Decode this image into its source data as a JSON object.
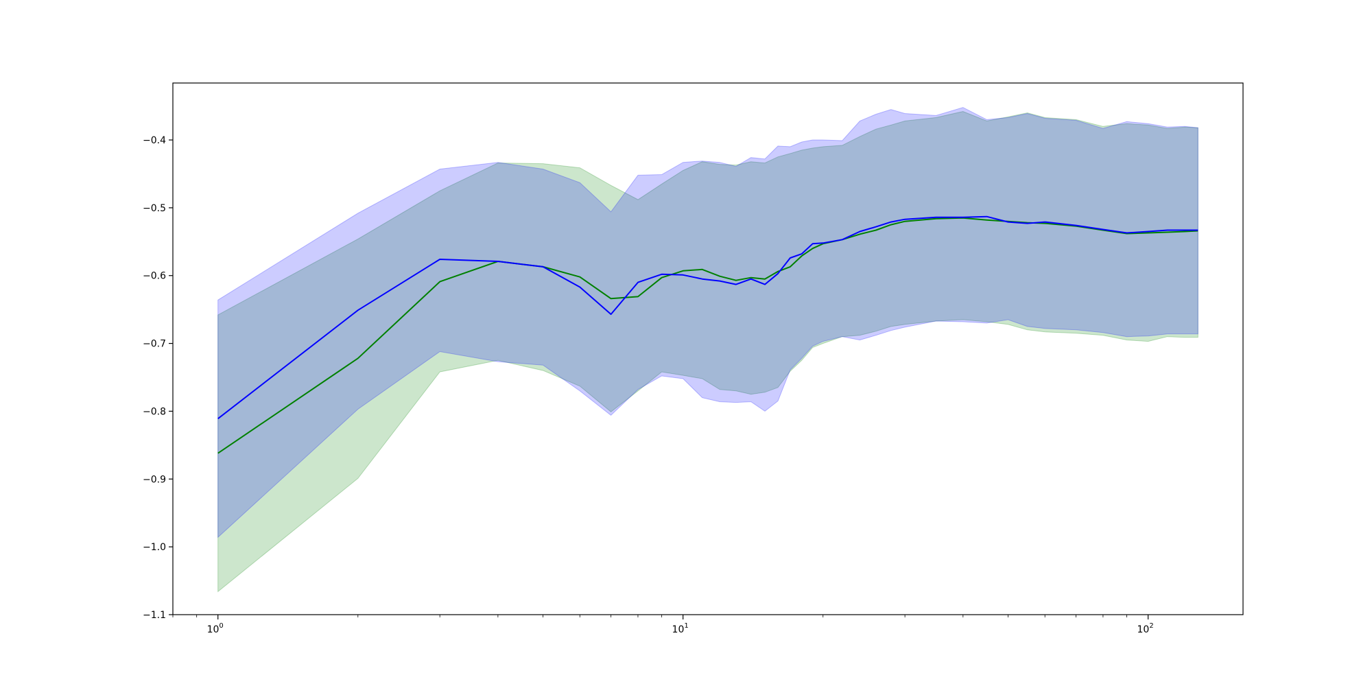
{
  "chart_data": {
    "type": "line",
    "xscale": "log",
    "xlim": [
      0.8,
      160
    ],
    "ylim": [
      -1.1,
      -0.316
    ],
    "grid": false,
    "legend": "none",
    "x_tick_labels": [
      {
        "base": "10",
        "exp": "0",
        "value": 1
      },
      {
        "base": "10",
        "exp": "1",
        "value": 10
      },
      {
        "base": "10",
        "exp": "2",
        "value": 100
      }
    ],
    "y_ticks": [
      -1.1,
      -1.0,
      -0.9,
      -0.8,
      -0.7,
      -0.6,
      -0.5,
      -0.4
    ],
    "y_tick_labels": [
      "−1.1",
      "−1.0",
      "−0.9",
      "−0.8",
      "−0.7",
      "−0.6",
      "−0.5",
      "−0.4"
    ],
    "series": [
      {
        "color": "#008000",
        "band_color": "#008000",
        "x": [
          1,
          2,
          3,
          4,
          5,
          6,
          7,
          8,
          9,
          10,
          11,
          12,
          13,
          14,
          15,
          16,
          17,
          18,
          19,
          20,
          22,
          24,
          26,
          28,
          30,
          35,
          40,
          45,
          50,
          55,
          60,
          70,
          80,
          90,
          100,
          110,
          120,
          128
        ],
        "mean": [
          -0.862,
          -0.722,
          -0.609,
          -0.579,
          -0.587,
          -0.602,
          -0.634,
          -0.631,
          -0.603,
          -0.593,
          -0.591,
          -0.601,
          -0.607,
          -0.603,
          -0.605,
          -0.594,
          -0.587,
          -0.571,
          -0.56,
          -0.553,
          -0.547,
          -0.539,
          -0.533,
          -0.525,
          -0.52,
          -0.516,
          -0.515,
          -0.518,
          -0.52,
          -0.522,
          -0.523,
          -0.527,
          -0.533,
          -0.538,
          -0.537,
          -0.536,
          -0.535,
          -0.534
        ],
        "upper": [
          -0.658,
          -0.546,
          -0.475,
          -0.434,
          -0.435,
          -0.441,
          -0.467,
          -0.488,
          -0.465,
          -0.445,
          -0.432,
          -0.436,
          -0.437,
          -0.432,
          -0.434,
          -0.425,
          -0.42,
          -0.415,
          -0.412,
          -0.41,
          -0.408,
          -0.395,
          -0.384,
          -0.378,
          -0.372,
          -0.367,
          -0.358,
          -0.372,
          -0.366,
          -0.36,
          -0.367,
          -0.37,
          -0.38,
          -0.376,
          -0.378,
          -0.383,
          -0.381,
          -0.382
        ],
        "lower": [
          -1.066,
          -0.899,
          -0.742,
          -0.725,
          -0.74,
          -0.763,
          -0.801,
          -0.77,
          -0.742,
          -0.747,
          -0.752,
          -0.768,
          -0.77,
          -0.775,
          -0.772,
          -0.765,
          -0.741,
          -0.725,
          -0.706,
          -0.7,
          -0.69,
          -0.688,
          -0.682,
          -0.675,
          -0.672,
          -0.667,
          -0.665,
          -0.668,
          -0.672,
          -0.68,
          -0.683,
          -0.685,
          -0.688,
          -0.695,
          -0.697,
          -0.69,
          -0.691,
          -0.691
        ]
      },
      {
        "color": "#0000ff",
        "band_color": "#0000ff",
        "x": [
          1,
          2,
          3,
          4,
          5,
          6,
          7,
          8,
          9,
          10,
          11,
          12,
          13,
          14,
          15,
          16,
          17,
          18,
          19,
          20,
          22,
          24,
          26,
          28,
          30,
          35,
          40,
          45,
          50,
          55,
          60,
          70,
          80,
          90,
          100,
          110,
          120,
          128
        ],
        "mean": [
          -0.811,
          -0.651,
          -0.576,
          -0.579,
          -0.587,
          -0.617,
          -0.657,
          -0.61,
          -0.598,
          -0.599,
          -0.605,
          -0.608,
          -0.613,
          -0.605,
          -0.613,
          -0.597,
          -0.574,
          -0.568,
          -0.553,
          -0.552,
          -0.547,
          -0.535,
          -0.528,
          -0.521,
          -0.517,
          -0.514,
          -0.514,
          -0.513,
          -0.521,
          -0.523,
          -0.521,
          -0.526,
          -0.532,
          -0.537,
          -0.535,
          -0.533,
          -0.533,
          -0.533
        ],
        "upper": [
          -0.636,
          -0.508,
          -0.443,
          -0.433,
          -0.443,
          -0.463,
          -0.506,
          -0.452,
          -0.451,
          -0.433,
          -0.431,
          -0.433,
          -0.439,
          -0.426,
          -0.428,
          -0.409,
          -0.41,
          -0.403,
          -0.4,
          -0.4,
          -0.401,
          -0.372,
          -0.362,
          -0.355,
          -0.361,
          -0.364,
          -0.352,
          -0.37,
          -0.367,
          -0.361,
          -0.368,
          -0.371,
          -0.383,
          -0.373,
          -0.376,
          -0.381,
          -0.38,
          -0.382
        ],
        "lower": [
          -0.986,
          -0.797,
          -0.712,
          -0.727,
          -0.732,
          -0.77,
          -0.806,
          -0.768,
          -0.748,
          -0.752,
          -0.78,
          -0.786,
          -0.787,
          -0.786,
          -0.8,
          -0.785,
          -0.739,
          -0.722,
          -0.704,
          -0.697,
          -0.69,
          -0.695,
          -0.688,
          -0.681,
          -0.676,
          -0.667,
          -0.668,
          -0.67,
          -0.665,
          -0.675,
          -0.678,
          -0.68,
          -0.684,
          -0.69,
          -0.689,
          -0.686,
          -0.686,
          -0.686
        ]
      }
    ]
  }
}
